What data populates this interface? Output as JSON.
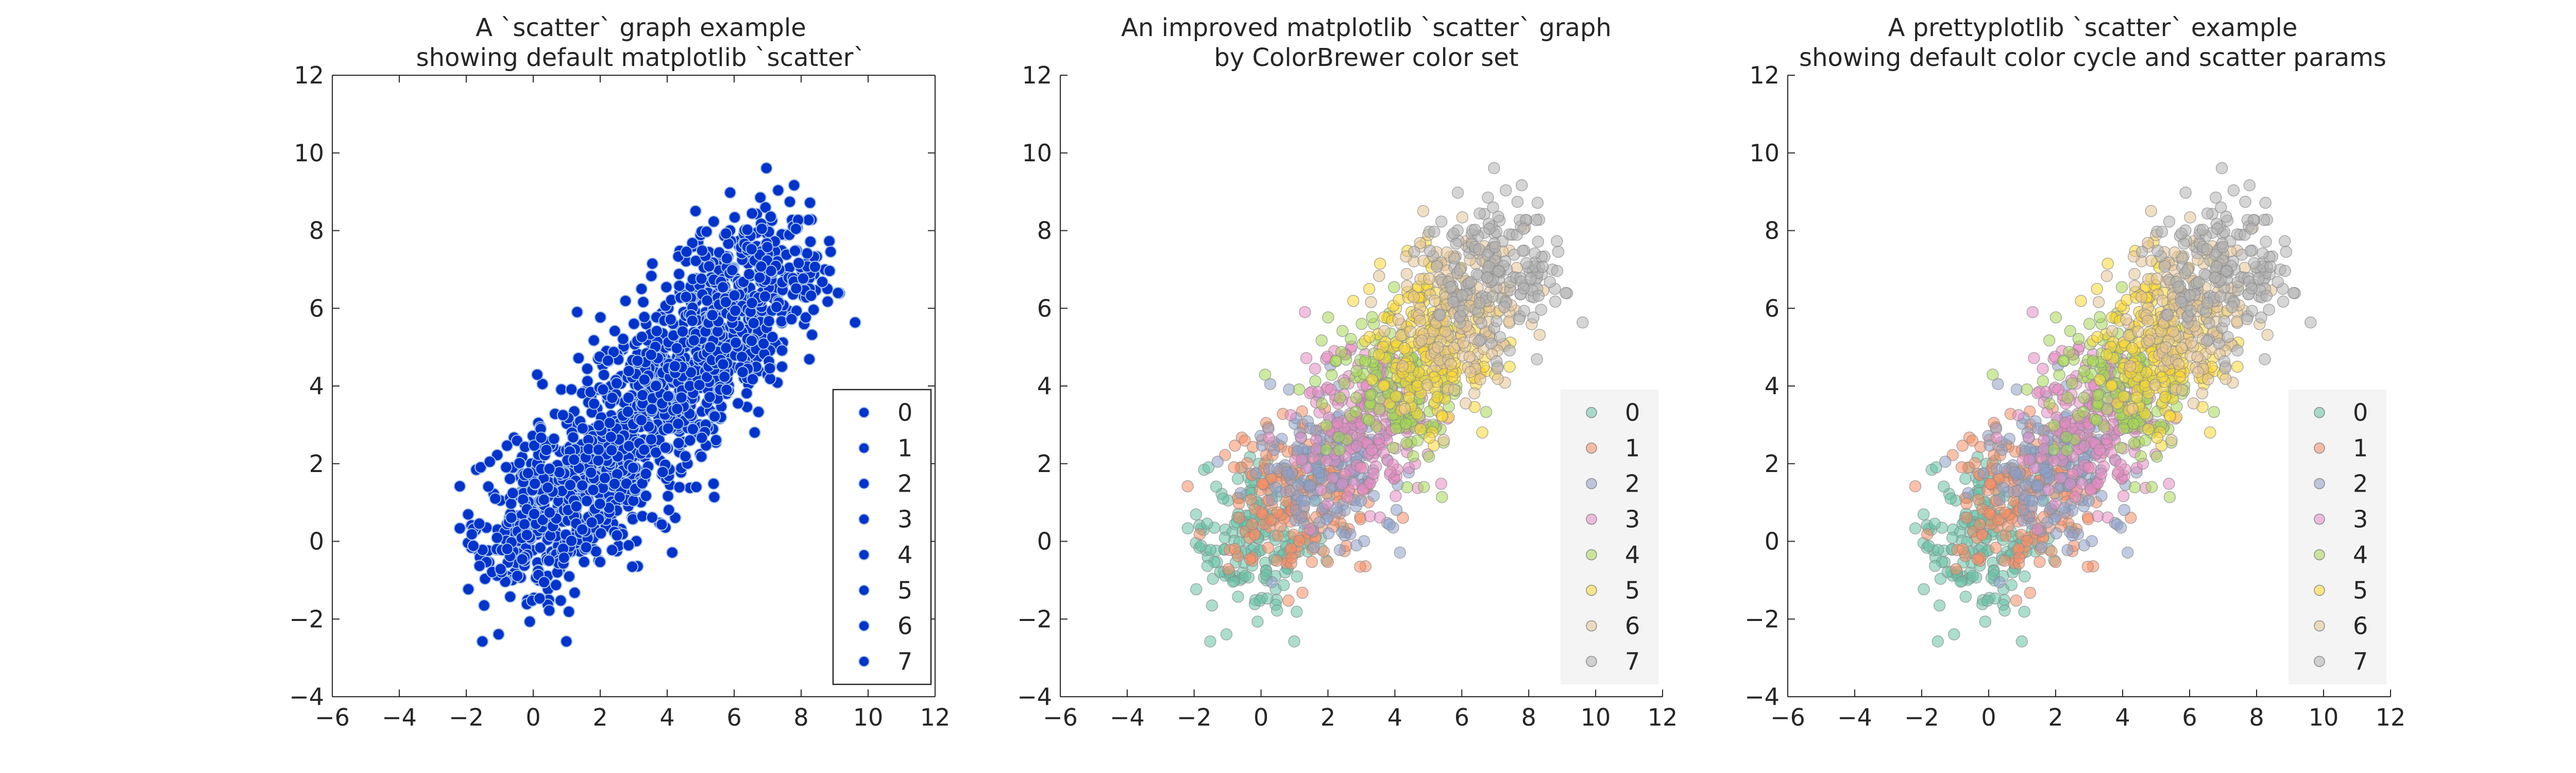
{
  "chart_data": [
    {
      "type": "scatter",
      "style": "default-matplotlib",
      "title": "A `scatter` graph example\nshowing default matplotlib `scatter`",
      "xlim": [
        -6,
        12
      ],
      "ylim": [
        -4,
        12
      ],
      "xticks": [
        "−6",
        "−4",
        "−2",
        "0",
        "2",
        "4",
        "6",
        "8",
        "10",
        "12"
      ],
      "yticks": [
        "−4",
        "−2",
        "0",
        "2",
        "4",
        "6",
        "8",
        "10",
        "12"
      ],
      "grid": false,
      "legend_position": "bottom-right",
      "legend_frame": true,
      "marker_color": "#0033cc",
      "marker_edge": "#a9c4e6",
      "series": [
        {
          "name": "0",
          "center": [
            0.0,
            0.0
          ]
        },
        {
          "name": "1",
          "center": [
            1.0,
            1.0
          ]
        },
        {
          "name": "2",
          "center": [
            2.0,
            2.0
          ]
        },
        {
          "name": "3",
          "center": [
            3.0,
            3.0
          ]
        },
        {
          "name": "4",
          "center": [
            4.0,
            4.0
          ]
        },
        {
          "name": "5",
          "center": [
            5.0,
            5.0
          ]
        },
        {
          "name": "6",
          "center": [
            6.0,
            6.0
          ]
        },
        {
          "name": "7",
          "center": [
            7.0,
            7.0
          ]
        }
      ]
    },
    {
      "type": "scatter",
      "style": "improved-matplotlib",
      "title": "An improved matplotlib `scatter` graph\nby ColorBrewer color set",
      "xlim": [
        -6,
        12
      ],
      "ylim": [
        -4,
        12
      ],
      "xticks": [
        "−6",
        "−4",
        "−2",
        "0",
        "2",
        "4",
        "6",
        "8",
        "10",
        "12"
      ],
      "yticks": [
        "−4",
        "−2",
        "0",
        "2",
        "4",
        "6",
        "8",
        "10",
        "12"
      ],
      "grid": false,
      "legend_position": "bottom-right",
      "legend_frame": false,
      "colors": [
        "#66c2a5",
        "#fc8d62",
        "#8da0cb",
        "#e78ac3",
        "#a6d854",
        "#ffd92f",
        "#e5c494",
        "#b3b3b3"
      ],
      "series": [
        {
          "name": "0",
          "center": [
            0.0,
            0.0
          ]
        },
        {
          "name": "1",
          "center": [
            1.0,
            1.0
          ]
        },
        {
          "name": "2",
          "center": [
            2.0,
            2.0
          ]
        },
        {
          "name": "3",
          "center": [
            3.0,
            3.0
          ]
        },
        {
          "name": "4",
          "center": [
            4.0,
            4.0
          ]
        },
        {
          "name": "5",
          "center": [
            5.0,
            5.0
          ]
        },
        {
          "name": "6",
          "center": [
            6.0,
            6.0
          ]
        },
        {
          "name": "7",
          "center": [
            7.0,
            7.0
          ]
        }
      ]
    },
    {
      "type": "scatter",
      "style": "prettyplotlib",
      "title": "A prettyplotlib `scatter` example\nshowing default color cycle and scatter params",
      "xlim": [
        -6,
        12
      ],
      "ylim": [
        -4,
        12
      ],
      "xticks": [
        "−6",
        "−4",
        "−2",
        "0",
        "2",
        "4",
        "6",
        "8",
        "10",
        "12"
      ],
      "yticks": [
        "−4",
        "−2",
        "0",
        "2",
        "4",
        "6",
        "8",
        "10",
        "12"
      ],
      "grid": false,
      "legend_position": "bottom-right",
      "legend_frame": false,
      "colors": [
        "#66c2a5",
        "#fc8d62",
        "#8da0cb",
        "#e78ac3",
        "#a6d854",
        "#ffd92f",
        "#e5c494",
        "#b3b3b3"
      ],
      "series": [
        {
          "name": "0",
          "center": [
            0.0,
            0.0
          ]
        },
        {
          "name": "1",
          "center": [
            1.0,
            1.0
          ]
        },
        {
          "name": "2",
          "center": [
            2.0,
            2.0
          ]
        },
        {
          "name": "3",
          "center": [
            3.0,
            3.0
          ]
        },
        {
          "name": "4",
          "center": [
            4.0,
            4.0
          ]
        },
        {
          "name": "5",
          "center": [
            5.0,
            5.0
          ]
        },
        {
          "name": "6",
          "center": [
            6.0,
            6.0
          ]
        },
        {
          "name": "7",
          "center": [
            7.0,
            7.0
          ]
        }
      ]
    }
  ]
}
